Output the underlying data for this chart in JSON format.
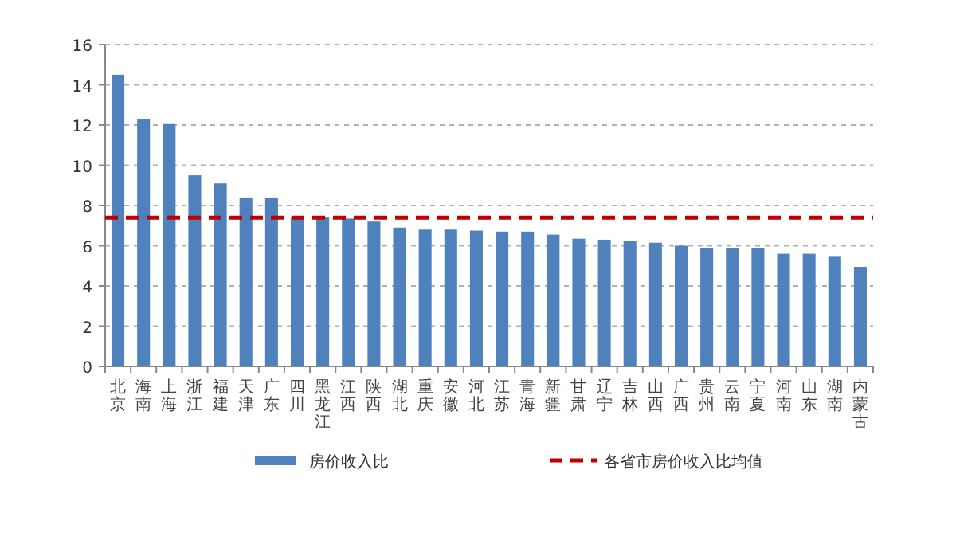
{
  "chart_data": {
    "type": "bar",
    "categories": [
      "北京",
      "海南",
      "上海",
      "浙江",
      "福建",
      "天津",
      "广东",
      "四川",
      "黑龙江",
      "江西",
      "陕西",
      "湖北",
      "重庆",
      "安徽",
      "河北",
      "江苏",
      "青海",
      "新疆",
      "甘肃",
      "辽宁",
      "吉林",
      "山西",
      "广西",
      "贵州",
      "云南",
      "宁夏",
      "河南",
      "山东",
      "湖南",
      "内蒙古"
    ],
    "series": [
      {
        "name": "房价收入比",
        "color": "#4f81bd",
        "values": [
          14.5,
          12.3,
          12.05,
          9.5,
          9.1,
          8.4,
          8.4,
          7.4,
          7.4,
          7.35,
          7.2,
          6.9,
          6.8,
          6.8,
          6.75,
          6.7,
          6.7,
          6.55,
          6.35,
          6.3,
          6.25,
          6.15,
          6.0,
          5.9,
          5.9,
          5.9,
          5.6,
          5.6,
          5.45,
          4.95
        ]
      }
    ],
    "ref_lines": [
      {
        "axis": "y",
        "value": 7.4,
        "label": "各省市房价收入比均值",
        "color": "#c00000",
        "line_style": "dashed"
      }
    ],
    "ylim": [
      0,
      16
    ],
    "yticks": [
      0,
      2,
      4,
      6,
      8,
      10,
      12,
      14,
      16
    ],
    "grid": "y",
    "legend": "bottom"
  }
}
